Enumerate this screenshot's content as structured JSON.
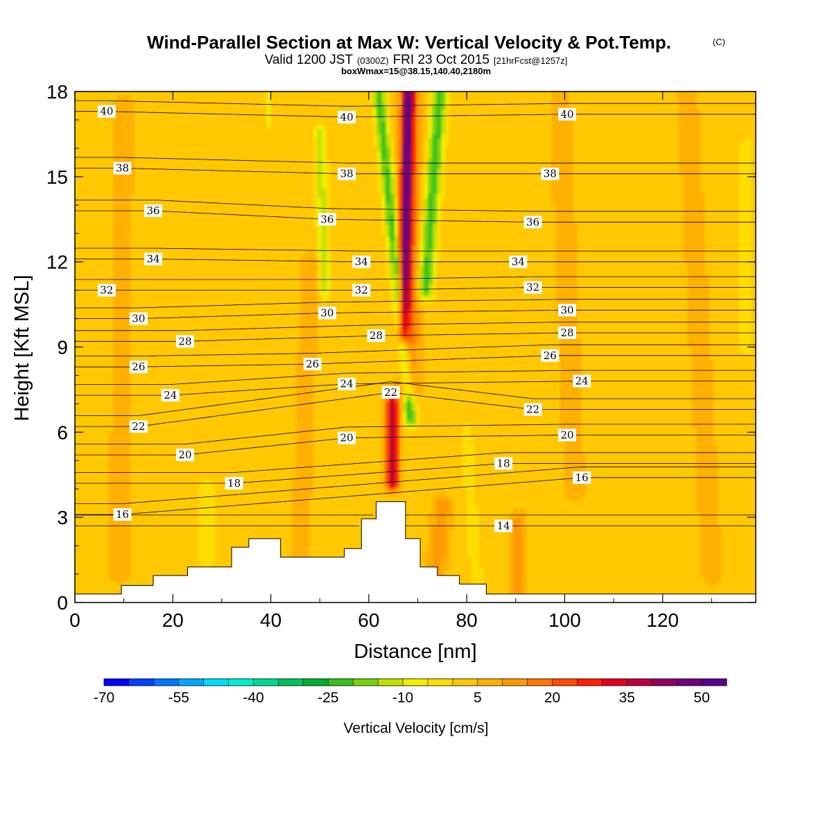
{
  "header": {
    "title": "Wind-Parallel Section at Max W: Vertical Velocity & Pot.Temp.",
    "copyright": "(C)",
    "valid_prefix": "Valid 1200 JST",
    "valid_zulu": "(0300Z)",
    "valid_date": "FRI 23 Oct 2015",
    "forecast_info": "[21hrFcst@1257z]",
    "box_info": "boxWmax=15@38.15,140.40,2180m"
  },
  "chart_data": {
    "type": "heatmap",
    "xlabel": "Distance [nm]",
    "ylabel": "Height [Kft MSL]",
    "xlim": [
      0,
      139
    ],
    "ylim": [
      0,
      18
    ],
    "x_ticks": [
      0,
      20,
      40,
      60,
      80,
      100,
      120
    ],
    "y_ticks": [
      0,
      3,
      6,
      9,
      12,
      15,
      18
    ],
    "colorbar": {
      "title": "Vertical Velocity [cm/s]",
      "tick_labels": [
        -70,
        -55,
        -40,
        -25,
        -10,
        5,
        20,
        35,
        50
      ],
      "min": -70,
      "max": 55,
      "step": 5,
      "colors": [
        "#0000ff",
        "#0044ff",
        "#0077ff",
        "#00a8ff",
        "#00ddff",
        "#00eecc",
        "#00d890",
        "#00c060",
        "#00b030",
        "#38c020",
        "#7ad010",
        "#c0e000",
        "#f0f000",
        "#ffdd00",
        "#ffc800",
        "#ffb000",
        "#ff9900",
        "#ff7700",
        "#ff4a00",
        "#ff2000",
        "#e00020",
        "#b80040",
        "#900060",
        "#700080",
        "#5a0090"
      ]
    },
    "background_value": 3,
    "terrain_profile": [
      [
        0,
        0.3
      ],
      [
        9.5,
        0.3
      ],
      [
        9.5,
        0.6
      ],
      [
        16,
        0.6
      ],
      [
        16,
        0.95
      ],
      [
        23,
        0.95
      ],
      [
        23,
        1.25
      ],
      [
        32,
        1.25
      ],
      [
        32,
        1.95
      ],
      [
        35.5,
        1.95
      ],
      [
        35.5,
        2.25
      ],
      [
        42,
        2.25
      ],
      [
        42,
        1.6
      ],
      [
        55,
        1.6
      ],
      [
        55,
        1.9
      ],
      [
        58.5,
        1.9
      ],
      [
        58.5,
        2.95
      ],
      [
        61.5,
        2.95
      ],
      [
        61.5,
        3.55
      ],
      [
        67.5,
        3.55
      ],
      [
        67.5,
        2.25
      ],
      [
        70.5,
        2.25
      ],
      [
        70.5,
        1.25
      ],
      [
        74,
        1.25
      ],
      [
        74,
        0.95
      ],
      [
        78.5,
        0.95
      ],
      [
        78.5,
        0.65
      ],
      [
        84,
        0.65
      ],
      [
        84,
        0.3
      ],
      [
        139,
        0.3
      ]
    ],
    "wave_features": [
      {
        "label": "strong updraft (lower)",
        "value": 38,
        "x_center": 64.8,
        "z_bottom": 4.3,
        "z_top": 7.0,
        "half_width": 1.2
      },
      {
        "label": "strong updraft (upper)",
        "value": 38,
        "x_bottom": 67.0,
        "x_top": 68.0,
        "z_bottom": 9.5,
        "z_top": 18.0,
        "half_width": 1.1
      },
      {
        "label": "updraft flank",
        "value": 20,
        "x_bottom": 68.0,
        "x_top": 68.5,
        "z_bottom": 7.5,
        "z_top": 18.0,
        "half_width": 2.0
      },
      {
        "label": "downdraft band",
        "value": -22,
        "x_bottom": 68.5,
        "x_top": 62.0,
        "z_bottom": 6.5,
        "z_top": 18.0,
        "half_width": 1.3
      },
      {
        "label": "downdraft band (east)",
        "value": -22,
        "x_bottom": 71.5,
        "x_top": 74.5,
        "z_bottom": 11.0,
        "z_top": 18.0,
        "half_width": 1.6
      },
      {
        "label": "weak downdraft streak",
        "value": -12,
        "x_bottom": 51,
        "x_top": 50,
        "z_bottom": 11.0,
        "z_top": 16.5,
        "half_width": 1.2
      },
      {
        "label": "weak downdraft streak",
        "value": -10,
        "x_bottom": 39.5,
        "x_top": 39.5,
        "z_bottom": 17.0,
        "z_top": 18.0,
        "half_width": 0.6
      },
      {
        "label": "lee updraft",
        "value": 14,
        "x_bottom": 73.5,
        "x_top": 75.0,
        "z_bottom": 0.9,
        "z_top": 3.4,
        "half_width": 1.8
      },
      {
        "label": "lee updraft",
        "value": 12,
        "x_bottom": 90.5,
        "x_top": 90.5,
        "z_bottom": 0.3,
        "z_top": 2.9,
        "half_width": 1.5
      },
      {
        "label": "weak lift",
        "value": 10,
        "x_bottom": 46,
        "x_top": 48,
        "z_bottom": 1.6,
        "z_top": 12.0,
        "half_width": 1.6
      },
      {
        "label": "weak lift",
        "value": 9,
        "x_bottom": 102,
        "x_top": 99,
        "z_bottom": 4.0,
        "z_top": 18.0,
        "half_width": 2.0
      },
      {
        "label": "weak lift",
        "value": 9,
        "x_bottom": 130,
        "x_top": 125,
        "z_bottom": 1.0,
        "z_top": 18.0,
        "half_width": 2.0
      },
      {
        "label": "weak lift",
        "value": 8,
        "x_bottom": 9,
        "x_top": 10,
        "z_bottom": 1.0,
        "z_top": 17.5,
        "half_width": 2.0
      },
      {
        "label": "weak sink",
        "value": -4,
        "x_bottom": 82,
        "x_top": 80,
        "z_bottom": 0.5,
        "z_top": 6.0,
        "half_width": 1.3
      },
      {
        "label": "weak sink",
        "value": -5,
        "x_bottom": 137,
        "x_top": 137,
        "z_bottom": 9.0,
        "z_top": 16.0,
        "half_width": 1.2
      },
      {
        "label": "weak sink",
        "value": -3,
        "x_bottom": 27,
        "x_top": 27,
        "z_bottom": 1.5,
        "z_top": 4.0,
        "half_width": 2.0
      }
    ],
    "theta_contours": {
      "values": [
        14,
        16,
        18,
        20,
        22,
        24,
        26,
        28,
        30,
        32,
        34,
        36,
        38,
        40
      ],
      "label_positions": [
        {
          "value": 40,
          "x": 6.5,
          "z": 17.3
        },
        {
          "value": 40,
          "x": 55.5,
          "z": 17.1
        },
        {
          "value": 40,
          "x": 100.5,
          "z": 17.2
        },
        {
          "value": 38,
          "x": 9.7,
          "z": 15.3
        },
        {
          "value": 38,
          "x": 55.5,
          "z": 15.1
        },
        {
          "value": 38,
          "x": 97.0,
          "z": 15.1
        },
        {
          "value": 36,
          "x": 16.0,
          "z": 13.8
        },
        {
          "value": 36,
          "x": 51.5,
          "z": 13.5
        },
        {
          "value": 36,
          "x": 93.5,
          "z": 13.4
        },
        {
          "value": 34,
          "x": 16.0,
          "z": 12.1
        },
        {
          "value": 34,
          "x": 58.5,
          "z": 12.0
        },
        {
          "value": 34,
          "x": 90.5,
          "z": 12.0
        },
        {
          "value": 32,
          "x": 6.5,
          "z": 11.0
        },
        {
          "value": 32,
          "x": 58.5,
          "z": 11.0
        },
        {
          "value": 32,
          "x": 93.5,
          "z": 11.1
        },
        {
          "value": 30,
          "x": 13.0,
          "z": 10.0
        },
        {
          "value": 30,
          "x": 51.5,
          "z": 10.2
        },
        {
          "value": 30,
          "x": 100.5,
          "z": 10.3
        },
        {
          "value": 28,
          "x": 22.5,
          "z": 9.2
        },
        {
          "value": 28,
          "x": 61.5,
          "z": 9.4
        },
        {
          "value": 28,
          "x": 100.5,
          "z": 9.5
        },
        {
          "value": 26,
          "x": 13.0,
          "z": 8.3
        },
        {
          "value": 26,
          "x": 48.5,
          "z": 8.4
        },
        {
          "value": 26,
          "x": 97.0,
          "z": 8.7
        },
        {
          "value": 24,
          "x": 19.5,
          "z": 7.3
        },
        {
          "value": 24,
          "x": 55.5,
          "z": 7.7
        },
        {
          "value": 24,
          "x": 103.5,
          "z": 7.8
        },
        {
          "value": 22,
          "x": 13.0,
          "z": 6.2
        },
        {
          "value": 22,
          "x": 64.5,
          "z": 7.4
        },
        {
          "value": 22,
          "x": 93.5,
          "z": 6.8
        },
        {
          "value": 20,
          "x": 22.5,
          "z": 5.2
        },
        {
          "value": 20,
          "x": 55.5,
          "z": 5.8
        },
        {
          "value": 20,
          "x": 100.5,
          "z": 5.9
        },
        {
          "value": 18,
          "x": 32.5,
          "z": 4.2
        },
        {
          "value": 18,
          "x": 87.5,
          "z": 4.9
        },
        {
          "value": 16,
          "x": 9.7,
          "z": 3.1
        },
        {
          "value": 16,
          "x": 103.5,
          "z": 4.4
        },
        {
          "value": 14,
          "x": 87.5,
          "z": 2.7
        }
      ]
    }
  }
}
